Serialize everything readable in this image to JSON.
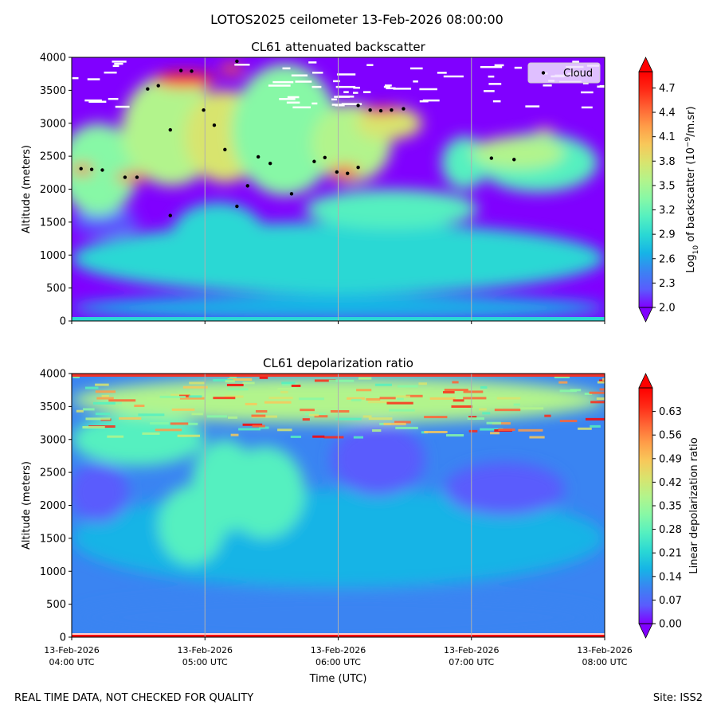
{
  "suptitle": "LOTOS2025 ceilometer 13-Feb-2026 08:00:00",
  "footer": {
    "left": "REAL TIME DATA, NOT CHECKED FOR QUALITY",
    "right": "Site: ISS2"
  },
  "colormap": [
    "#8000ff",
    "#5a5cfd",
    "#3a84f2",
    "#16b4e6",
    "#2ad8d4",
    "#55f0c0",
    "#87f8a6",
    "#b2f48c",
    "#d8e46e",
    "#f8c85a",
    "#ff9c48",
    "#ff6434",
    "#ff2a16",
    "#ff0000"
  ],
  "chart_data": [
    {
      "type": "heatmap",
      "title": "CL61 attenuated backscatter",
      "xlabel": "",
      "ylabel": "Altitude (meters)",
      "ylim": [
        0,
        4000
      ],
      "yticks": [
        0,
        500,
        1000,
        1500,
        2000,
        2500,
        3000,
        3500,
        4000
      ],
      "xlim_hours": [
        4,
        8
      ],
      "xticks_hours": [
        4,
        5,
        6,
        7,
        8
      ],
      "xticklabels": [],
      "grid": "vertical",
      "colorbar": {
        "label": "Log10 of backscatter (10^-9/m.sr)",
        "label_base": "Log",
        "label_sub": "10",
        "label_mid": " of backscatter (10",
        "label_sup": "−9",
        "label_end": "/m.sr)",
        "vmin": 2.0,
        "vmax": 4.9,
        "ticks": [
          "2.0",
          "2.3",
          "2.6",
          "2.9",
          "3.2",
          "3.5",
          "3.8",
          "4.1",
          "4.4",
          "4.7"
        ]
      },
      "legend": {
        "position": "top-right",
        "entries": [
          "Cloud"
        ]
      },
      "cloud_points": [
        {
          "t": 4.07,
          "alt": 2310
        },
        {
          "t": 4.15,
          "alt": 2300
        },
        {
          "t": 4.23,
          "alt": 2290
        },
        {
          "t": 4.4,
          "alt": 2180
        },
        {
          "t": 4.49,
          "alt": 2180
        },
        {
          "t": 4.57,
          "alt": 3520
        },
        {
          "t": 4.65,
          "alt": 3570
        },
        {
          "t": 4.74,
          "alt": 1600
        },
        {
          "t": 4.74,
          "alt": 2900
        },
        {
          "t": 4.82,
          "alt": 3800
        },
        {
          "t": 4.9,
          "alt": 3790
        },
        {
          "t": 4.99,
          "alt": 3200
        },
        {
          "t": 5.07,
          "alt": 2970
        },
        {
          "t": 5.15,
          "alt": 2600
        },
        {
          "t": 5.24,
          "alt": 1740
        },
        {
          "t": 5.24,
          "alt": 3940
        },
        {
          "t": 5.32,
          "alt": 2050
        },
        {
          "t": 5.4,
          "alt": 2490
        },
        {
          "t": 5.49,
          "alt": 2390
        },
        {
          "t": 5.65,
          "alt": 1930
        },
        {
          "t": 5.82,
          "alt": 2420
        },
        {
          "t": 5.9,
          "alt": 2480
        },
        {
          "t": 5.99,
          "alt": 2260
        },
        {
          "t": 6.07,
          "alt": 2240
        },
        {
          "t": 6.15,
          "alt": 2330
        },
        {
          "t": 6.15,
          "alt": 3270
        },
        {
          "t": 6.24,
          "alt": 3200
        },
        {
          "t": 6.32,
          "alt": 3190
        },
        {
          "t": 6.4,
          "alt": 3200
        },
        {
          "t": 6.49,
          "alt": 3220
        },
        {
          "t": 7.15,
          "alt": 2470
        },
        {
          "t": 7.32,
          "alt": 2450
        }
      ],
      "features": [
        {
          "t": 6.0,
          "alt": 200,
          "w": 4.0,
          "h": 400,
          "v": 0.22
        },
        {
          "t": 6.0,
          "alt": 950,
          "w": 4.0,
          "h": 1100,
          "v": 0.3
        },
        {
          "t": 4.25,
          "alt": 1500,
          "w": 0.5,
          "h": 400,
          "v": 0.05
        },
        {
          "t": 5.1,
          "alt": 1300,
          "w": 0.7,
          "h": 1000,
          "v": 0.28
        },
        {
          "t": 6.4,
          "alt": 1700,
          "w": 1.3,
          "h": 600,
          "v": 0.38
        },
        {
          "t": 6.95,
          "alt": 2400,
          "w": 0.35,
          "h": 800,
          "v": 0.4
        },
        {
          "t": 7.5,
          "alt": 2400,
          "w": 0.9,
          "h": 900,
          "v": 0.4
        },
        {
          "t": 4.2,
          "alt": 2300,
          "w": 0.6,
          "h": 1400,
          "v": 0.45
        },
        {
          "t": 4.75,
          "alt": 2900,
          "w": 0.75,
          "h": 1700,
          "v": 0.55
        },
        {
          "t": 5.15,
          "alt": 2800,
          "w": 0.6,
          "h": 1400,
          "v": 0.58
        },
        {
          "t": 5.6,
          "alt": 2900,
          "w": 0.8,
          "h": 2000,
          "v": 0.45
        },
        {
          "t": 6.1,
          "alt": 2700,
          "w": 0.6,
          "h": 1200,
          "v": 0.55
        },
        {
          "t": 6.38,
          "alt": 3000,
          "w": 0.5,
          "h": 500,
          "v": 0.6
        },
        {
          "t": 7.35,
          "alt": 2550,
          "w": 0.7,
          "h": 500,
          "v": 0.55
        },
        {
          "t": 7.55,
          "alt": 2880,
          "w": 0.15,
          "h": 80,
          "v": 0.7
        },
        {
          "t": 4.08,
          "alt": 2300,
          "w": 0.16,
          "h": 150,
          "v": 0.92
        },
        {
          "t": 4.45,
          "alt": 2180,
          "w": 0.25,
          "h": 130,
          "v": 0.95
        },
        {
          "t": 4.85,
          "alt": 3660,
          "w": 0.45,
          "h": 230,
          "v": 0.92
        },
        {
          "t": 5.2,
          "alt": 3820,
          "w": 0.18,
          "h": 150,
          "v": 0.85
        },
        {
          "t": 6.05,
          "alt": 2260,
          "w": 0.22,
          "h": 180,
          "v": 0.9
        },
        {
          "t": 6.33,
          "alt": 3200,
          "w": 0.28,
          "h": 90,
          "v": 0.97
        }
      ]
    },
    {
      "type": "heatmap",
      "title": "CL61 depolarization ratio",
      "xlabel": "Time (UTC)",
      "ylabel": "Altitude (meters)",
      "ylim": [
        0,
        4000
      ],
      "yticks": [
        0,
        500,
        1000,
        1500,
        2000,
        2500,
        3000,
        3500,
        4000
      ],
      "xlim_hours": [
        4,
        8
      ],
      "xticks_hours": [
        4,
        5,
        6,
        7,
        8
      ],
      "xticklabels": [
        {
          "date": "13-Feb-2026",
          "time": "04:00 UTC"
        },
        {
          "date": "13-Feb-2026",
          "time": "05:00 UTC"
        },
        {
          "date": "13-Feb-2026",
          "time": "06:00 UTC"
        },
        {
          "date": "13-Feb-2026",
          "time": "07:00 UTC"
        },
        {
          "date": "13-Feb-2026",
          "time": "08:00 UTC"
        }
      ],
      "grid": "vertical",
      "colorbar": {
        "label": "Linear depolarization ratio",
        "vmin": 0.0,
        "vmax": 0.7,
        "ticks": [
          "0.00",
          "0.07",
          "0.14",
          "0.21",
          "0.28",
          "0.35",
          "0.42",
          "0.49",
          "0.56",
          "0.63"
        ]
      },
      "features": [
        {
          "t": 6.0,
          "alt": 300,
          "w": 4.0,
          "h": 700,
          "v": 0.12
        },
        {
          "t": 6.0,
          "alt": 1500,
          "w": 4.0,
          "h": 1500,
          "v": 0.22
        },
        {
          "t": 4.5,
          "alt": 3000,
          "w": 1.0,
          "h": 800,
          "v": 0.42
        },
        {
          "t": 4.9,
          "alt": 1700,
          "w": 0.5,
          "h": 1200,
          "v": 0.42
        },
        {
          "t": 5.15,
          "alt": 2300,
          "w": 0.5,
          "h": 1400,
          "v": 0.4
        },
        {
          "t": 5.45,
          "alt": 2200,
          "w": 0.6,
          "h": 1400,
          "v": 0.36
        },
        {
          "t": 6.3,
          "alt": 2700,
          "w": 0.7,
          "h": 1100,
          "v": 0.04
        },
        {
          "t": 7.25,
          "alt": 2250,
          "w": 0.9,
          "h": 800,
          "v": 0.06
        },
        {
          "t": 4.2,
          "alt": 2200,
          "w": 0.45,
          "h": 900,
          "v": 0.08
        },
        {
          "t": 5.1,
          "alt": 3750,
          "w": 0.5,
          "h": 200,
          "v": 0.08
        },
        {
          "t": 6.0,
          "alt": 3600,
          "w": 4.0,
          "h": 700,
          "v": 0.5
        }
      ]
    }
  ]
}
